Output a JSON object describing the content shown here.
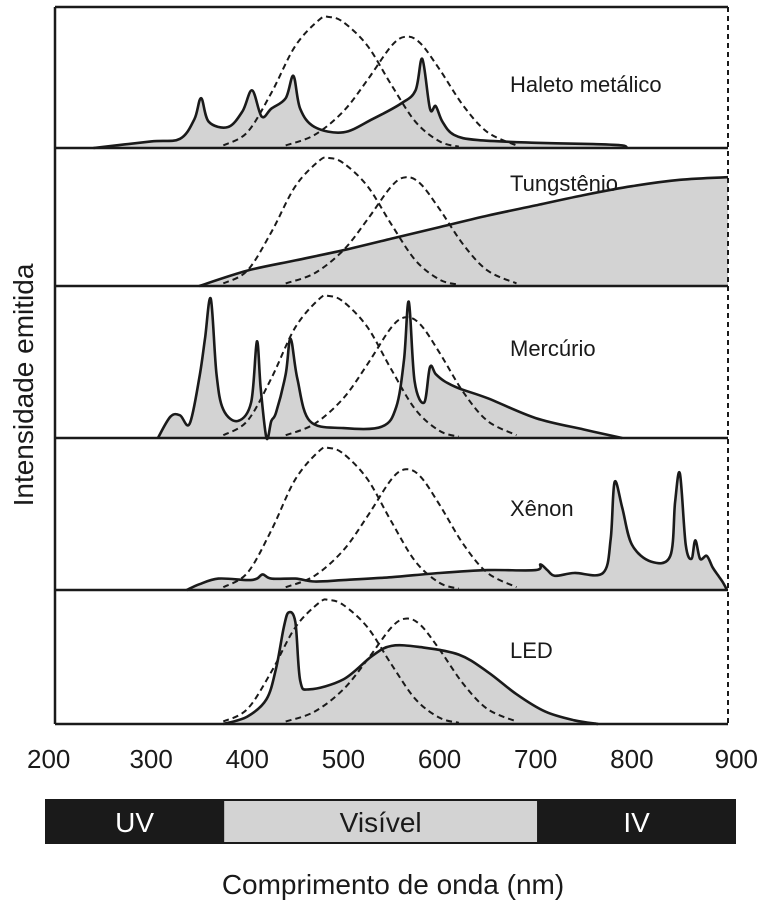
{
  "chart_data": {
    "type": "area",
    "xlabel": "Comprimento de onda (nm)",
    "ylabel": "Intensidade emitida",
    "xlim": [
      200,
      900
    ],
    "x_ticks": [
      200,
      300,
      400,
      500,
      600,
      700,
      800,
      900
    ],
    "grid": false,
    "colors": {
      "fill": "#d3d3d3",
      "stroke": "#1a1a1a",
      "band_dark": "#1a1a1a",
      "band_light": "#d3d3d3"
    },
    "spectral_bands": [
      {
        "name": "UV",
        "range": [
          200,
          380
        ]
      },
      {
        "name": "Visível",
        "range": [
          380,
          700
        ]
      },
      {
        "name": "IV",
        "range": [
          700,
          900
        ]
      }
    ],
    "sensitivity_curves": [
      {
        "peak": 485,
        "x": [
          375,
          400,
          425,
          450,
          475,
          485,
          500,
          525,
          550,
          575,
          600,
          620
        ],
        "y": [
          0.02,
          0.12,
          0.42,
          0.78,
          0.98,
          1.0,
          0.96,
          0.78,
          0.48,
          0.2,
          0.05,
          0.01
        ]
      },
      {
        "peak": 565,
        "x": [
          440,
          470,
          500,
          525,
          550,
          565,
          580,
          600,
          625,
          650,
          680
        ],
        "y": [
          0.02,
          0.1,
          0.28,
          0.52,
          0.78,
          0.85,
          0.8,
          0.6,
          0.32,
          0.12,
          0.02
        ]
      }
    ],
    "series": [
      {
        "name": "Haleto metálico",
        "x": [
          240,
          300,
          330,
          345,
          352,
          360,
          380,
          395,
          405,
          415,
          425,
          440,
          448,
          455,
          470,
          500,
          530,
          560,
          575,
          582,
          590,
          596,
          603,
          615,
          640,
          700,
          760,
          790,
          795
        ],
        "y": [
          0.0,
          0.05,
          0.07,
          0.22,
          0.38,
          0.2,
          0.16,
          0.28,
          0.44,
          0.24,
          0.3,
          0.38,
          0.55,
          0.3,
          0.16,
          0.12,
          0.22,
          0.34,
          0.44,
          0.68,
          0.3,
          0.32,
          0.2,
          0.1,
          0.06,
          0.04,
          0.03,
          0.02,
          0.0
        ]
      },
      {
        "name": "Tungstênio",
        "x": [
          350,
          400,
          450,
          500,
          550,
          600,
          650,
          700,
          750,
          800,
          850,
          900
        ],
        "y": [
          0.0,
          0.12,
          0.2,
          0.28,
          0.37,
          0.46,
          0.55,
          0.63,
          0.71,
          0.78,
          0.83,
          0.85
        ]
      },
      {
        "name": "Mercúrio",
        "x": [
          307,
          320,
          330,
          340,
          350,
          356,
          362,
          368,
          375,
          390,
          404,
          410,
          414,
          420,
          425,
          430,
          440,
          445,
          452,
          465,
          500,
          540,
          555,
          563,
          568,
          574,
          584,
          590,
          596,
          605,
          620,
          650,
          700,
          750,
          790
        ],
        "y": [
          0.0,
          0.15,
          0.16,
          0.1,
          0.42,
          0.7,
          0.98,
          0.45,
          0.2,
          0.12,
          0.25,
          0.68,
          0.35,
          0.0,
          0.12,
          0.18,
          0.45,
          0.7,
          0.42,
          0.12,
          0.07,
          0.08,
          0.22,
          0.55,
          0.96,
          0.4,
          0.25,
          0.5,
          0.45,
          0.4,
          0.35,
          0.28,
          0.14,
          0.06,
          0.0
        ]
      },
      {
        "name": "Xênon",
        "x": [
          337,
          350,
          370,
          400,
          410,
          416,
          425,
          450,
          470,
          500,
          550,
          600,
          650,
          700,
          705,
          712,
          720,
          740,
          770,
          778,
          782,
          790,
          800,
          820,
          840,
          845,
          850,
          856,
          862,
          866,
          871,
          878,
          884,
          890,
          895,
          899
        ],
        "y": [
          0.0,
          0.04,
          0.08,
          0.07,
          0.08,
          0.11,
          0.08,
          0.08,
          0.06,
          0.07,
          0.09,
          0.12,
          0.14,
          0.14,
          0.18,
          0.14,
          0.1,
          0.12,
          0.12,
          0.36,
          0.76,
          0.58,
          0.32,
          0.2,
          0.24,
          0.62,
          0.82,
          0.32,
          0.22,
          0.35,
          0.22,
          0.24,
          0.16,
          0.1,
          0.05,
          0.0
        ]
      },
      {
        "name": "LED",
        "x": [
          375,
          400,
          420,
          430,
          438,
          443,
          450,
          455,
          465,
          500,
          530,
          550,
          580,
          620,
          650,
          680,
          710,
          740,
          765
        ],
        "y": [
          0.0,
          0.06,
          0.2,
          0.45,
          0.78,
          0.9,
          0.82,
          0.35,
          0.28,
          0.36,
          0.55,
          0.63,
          0.62,
          0.56,
          0.42,
          0.24,
          0.1,
          0.03,
          0.0
        ]
      }
    ]
  }
}
